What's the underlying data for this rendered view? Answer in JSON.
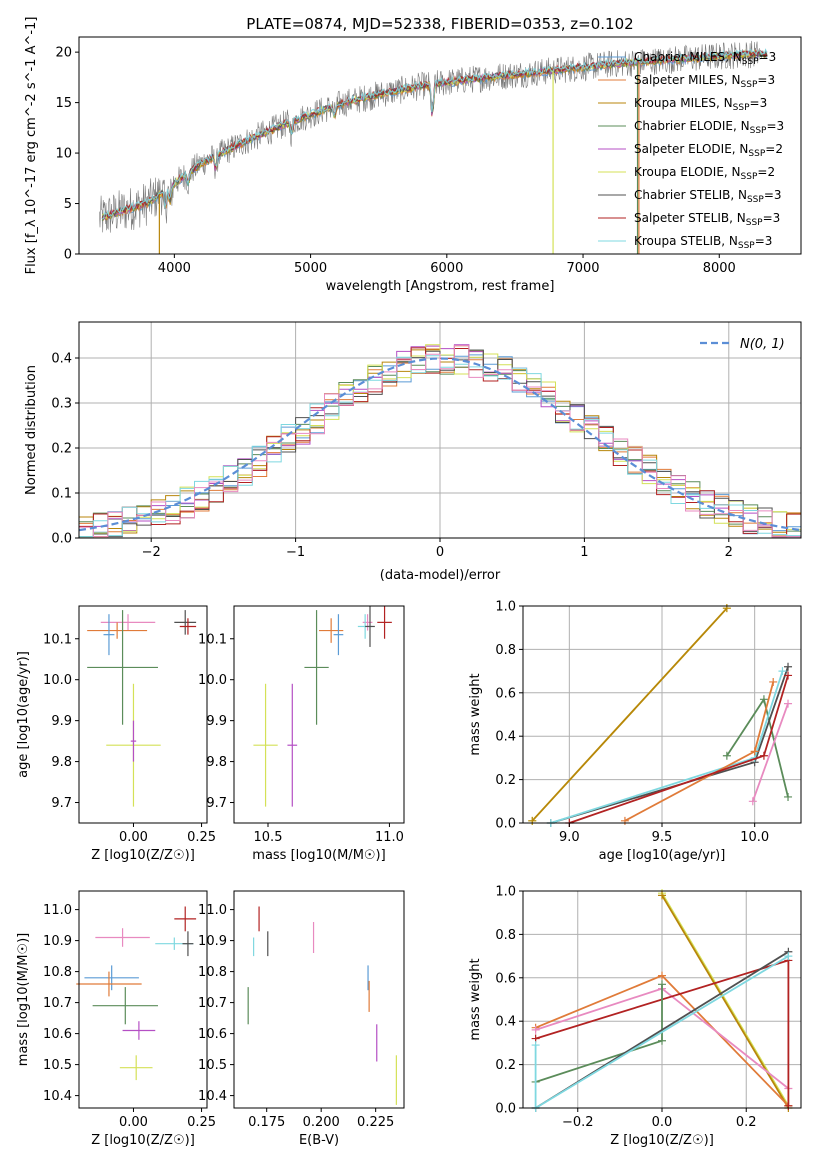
{
  "title": "PLATE=0874, MJD=52338, FIBERID=0353, z=0.102",
  "colors": {
    "chabrier_miles": "#5b9bd5",
    "salpeter_miles": "#e07b39",
    "kroupa_miles": "#b8860b",
    "chabrier_elodie": "#5b8c5a",
    "salpeter_elodie": "#b44fc4",
    "kroupa_elodie": "#d4e157",
    "chabrier_stelib": "#505050",
    "salpeter_stelib": "#b22222",
    "kroupa_stelib": "#7fd8e0",
    "pink": "#e88ac0",
    "normal_curve": "#5b8ed6",
    "grid": "#b0b0b0"
  },
  "chart_data": [
    {
      "id": "spectrum",
      "type": "line",
      "title": "PLATE=0874, MJD=52338, FIBERID=0353, z=0.102",
      "xlabel": "wavelength [Angstrom, rest frame]",
      "ylabel": "Flux [f_λ 10^-17 erg cm^-2 s^-1 A^-1]",
      "xlim": [
        3300,
        8600
      ],
      "ylim": [
        0,
        21.5
      ],
      "xticks": [
        "4000",
        "5000",
        "6000",
        "7000",
        "8000"
      ],
      "yticks": [
        "0",
        "5",
        "10",
        "15",
        "20"
      ],
      "grid": false,
      "legend_position": "top-right",
      "series": [
        {
          "name": "Chabrier MILES, N_SSP=3",
          "key": "chabrier_miles"
        },
        {
          "name": "Salpeter MILES, N_SSP=3",
          "key": "salpeter_miles"
        },
        {
          "name": "Kroupa MILES, N_SSP=3",
          "key": "kroupa_miles"
        },
        {
          "name": "Chabrier ELODIE, N_SSP=3",
          "key": "chabrier_elodie"
        },
        {
          "name": "Salpeter ELODIE, N_SSP=2",
          "key": "salpeter_elodie"
        },
        {
          "name": "Kroupa ELODIE, N_SSP=2",
          "key": "kroupa_elodie"
        },
        {
          "name": "Chabrier STELIB, N_SSP=3",
          "key": "chabrier_stelib"
        },
        {
          "name": "Salpeter STELIB, N_SSP=3",
          "key": "salpeter_stelib"
        },
        {
          "name": "Kroupa STELIB, N_SSP=3",
          "key": "kroupa_stelib"
        }
      ],
      "continuum": {
        "x": [
          3450,
          3600,
          3800,
          4000,
          4200,
          4500,
          4800,
          5000,
          5200,
          5500,
          5800,
          6000,
          6300,
          6600,
          6800,
          7000,
          7200,
          7400,
          7600,
          7800,
          8000,
          8200
        ],
        "y": [
          3.5,
          4.2,
          5.0,
          7.0,
          9.0,
          11.0,
          12.8,
          13.8,
          14.8,
          15.8,
          16.6,
          17.0,
          17.5,
          17.9,
          18.2,
          18.5,
          18.8,
          19.0,
          19.2,
          19.4,
          19.6,
          19.8
        ]
      }
    },
    {
      "id": "residuals",
      "type": "step",
      "xlabel": "(data-model)/error",
      "ylabel": "Normed distribution",
      "xlim": [
        -2.5,
        2.5
      ],
      "ylim": [
        0,
        0.48
      ],
      "xticks": [
        "−2",
        "−1",
        "0",
        "1",
        "2"
      ],
      "yticks": [
        "0.0",
        "0.1",
        "0.2",
        "0.3",
        "0.4"
      ],
      "grid": true,
      "legend_position": "top-right",
      "legend_label": "N(0, 1)"
    },
    {
      "id": "age_vs_Z",
      "type": "scatter",
      "xlabel": "Z [log10(Z/Z☉)]",
      "ylabel": "age  [log10(age/yr)]",
      "xlim": [
        -0.2,
        0.27
      ],
      "ylim": [
        9.65,
        10.18
      ],
      "xticks": [
        "0.00",
        "0.25"
      ],
      "yticks": [
        "9.7",
        "9.8",
        "9.9",
        "10.0",
        "10.1"
      ],
      "points": [
        {
          "key": "pink",
          "x": -0.02,
          "y": 10.14,
          "xerr": 0.1,
          "yerr": 0.02
        },
        {
          "key": "salpeter_miles",
          "x": -0.06,
          "y": 10.12,
          "xerr": 0.11,
          "yerr": 0.02
        },
        {
          "key": "chabrier_miles",
          "x": -0.09,
          "y": 10.11,
          "xerr": 0.02,
          "yerr": 0.05
        },
        {
          "key": "chabrier_stelib",
          "x": 0.19,
          "y": 10.14,
          "xerr": 0.04,
          "yerr": 0.03
        },
        {
          "key": "salpeter_stelib",
          "x": 0.2,
          "y": 10.13,
          "xerr": 0.03,
          "yerr": 0.02
        },
        {
          "key": "chabrier_elodie",
          "x": -0.04,
          "y": 10.03,
          "xerr": 0.13,
          "yerr": 0.14
        },
        {
          "key": "kroupa_elodie",
          "x": 0.0,
          "y": 9.84,
          "xerr": 0.1,
          "yerr": 0.15
        },
        {
          "key": "salpeter_elodie",
          "x": 0.0,
          "y": 9.85,
          "xerr": 0.01,
          "yerr": 0.05
        }
      ]
    },
    {
      "id": "age_vs_mass",
      "type": "scatter",
      "xlabel": "mass [log10(M/M☉)]",
      "ylabel": "",
      "xlim": [
        10.36,
        11.06
      ],
      "ylim": [
        9.65,
        10.18
      ],
      "xticks": [
        "10.5",
        "11.0"
      ],
      "yticks": [
        "9.7",
        "9.8",
        "9.9",
        "10.0",
        "10.1"
      ],
      "points": [
        {
          "key": "salpeter_miles",
          "x": 10.76,
          "y": 10.12,
          "xerr": 0.05,
          "yerr": 0.03
        },
        {
          "key": "chabrier_miles",
          "x": 10.79,
          "y": 10.11,
          "xerr": 0.02,
          "yerr": 0.05
        },
        {
          "key": "pink",
          "x": 10.91,
          "y": 10.14,
          "xerr": 0.02,
          "yerr": 0.02
        },
        {
          "key": "kroupa_stelib",
          "x": 10.9,
          "y": 10.13,
          "xerr": 0.03,
          "yerr": 0.03
        },
        {
          "key": "chabrier_stelib",
          "x": 10.92,
          "y": 10.13,
          "xerr": 0.02,
          "yerr": 0.05
        },
        {
          "key": "salpeter_stelib",
          "x": 10.98,
          "y": 10.14,
          "xerr": 0.03,
          "yerr": 0.04
        },
        {
          "key": "chabrier_elodie",
          "x": 10.7,
          "y": 10.03,
          "xerr": 0.05,
          "yerr": 0.14
        },
        {
          "key": "kroupa_elodie",
          "x": 10.49,
          "y": 9.84,
          "xerr": 0.05,
          "yerr": 0.15
        },
        {
          "key": "salpeter_elodie",
          "x": 10.6,
          "y": 9.84,
          "xerr": 0.02,
          "yerr": 0.15
        }
      ]
    },
    {
      "id": "mass_weight_vs_age",
      "type": "line",
      "xlabel": "age  [log10(age/yr)]",
      "ylabel": "mass weight",
      "xlim": [
        8.75,
        10.25
      ],
      "ylim": [
        0,
        1.0
      ],
      "xticks": [
        "9.0",
        "9.5",
        "10.0"
      ],
      "yticks": [
        "0.0",
        "0.2",
        "0.4",
        "0.6",
        "0.8",
        "1.0"
      ],
      "grid": true,
      "series": [
        {
          "key": "kroupa_elodie",
          "x": [
            8.8,
            9.85
          ],
          "y": [
            0.01,
            0.99
          ]
        },
        {
          "key": "kroupa_miles",
          "x": [
            8.8,
            9.85
          ],
          "y": [
            0.01,
            0.99
          ]
        },
        {
          "key": "chabrier_elodie",
          "x": [
            9.85,
            10.05,
            10.18
          ],
          "y": [
            0.31,
            0.57,
            0.12
          ]
        },
        {
          "key": "chabrier_stelib",
          "x": [
            8.9,
            10.0,
            10.18
          ],
          "y": [
            0.0,
            0.28,
            0.72
          ]
        },
        {
          "key": "kroupa_stelib",
          "x": [
            8.9,
            10.0,
            10.15
          ],
          "y": [
            0.0,
            0.3,
            0.7
          ]
        },
        {
          "key": "salpeter_miles",
          "x": [
            9.3,
            10.0,
            10.1
          ],
          "y": [
            0.01,
            0.33,
            0.65
          ]
        },
        {
          "key": "salpeter_stelib",
          "x": [
            9.0,
            10.05,
            10.18
          ],
          "y": [
            0.0,
            0.31,
            0.68
          ]
        },
        {
          "key": "pink",
          "x": [
            9.99,
            10.18
          ],
          "y": [
            0.1,
            0.55
          ]
        }
      ]
    },
    {
      "id": "mass_vs_Z",
      "type": "scatter",
      "xlabel": "Z [log10(Z/Z☉)]",
      "ylabel": "mass [log10(M/M☉)]",
      "xlim": [
        -0.2,
        0.27
      ],
      "ylim": [
        10.36,
        11.06
      ],
      "xticks": [
        "0.00",
        "0.25"
      ],
      "yticks": [
        "10.4",
        "10.5",
        "10.6",
        "10.7",
        "10.8",
        "10.9",
        "11.0"
      ],
      "points": [
        {
          "key": "salpeter_stelib",
          "x": 0.19,
          "y": 10.97,
          "xerr": 0.04,
          "yerr": 0.04
        },
        {
          "key": "pink",
          "x": -0.04,
          "y": 10.91,
          "xerr": 0.1,
          "yerr": 0.03
        },
        {
          "key": "kroupa_stelib",
          "x": 0.15,
          "y": 10.89,
          "xerr": 0.07,
          "yerr": 0.02
        },
        {
          "key": "chabrier_stelib",
          "x": 0.2,
          "y": 10.89,
          "xerr": 0.02,
          "yerr": 0.04
        },
        {
          "key": "chabrier_miles",
          "x": -0.08,
          "y": 10.78,
          "xerr": 0.1,
          "yerr": 0.04
        },
        {
          "key": "salpeter_miles",
          "x": -0.09,
          "y": 10.76,
          "xerr": 0.12,
          "yerr": 0.04
        },
        {
          "key": "chabrier_elodie",
          "x": -0.03,
          "y": 10.69,
          "xerr": 0.12,
          "yerr": 0.06
        },
        {
          "key": "salpeter_elodie",
          "x": 0.02,
          "y": 10.61,
          "xerr": 0.06,
          "yerr": 0.03
        },
        {
          "key": "kroupa_elodie",
          "x": 0.01,
          "y": 10.49,
          "xerr": 0.06,
          "yerr": 0.04
        }
      ]
    },
    {
      "id": "mass_vs_ebv",
      "type": "scatter",
      "xlabel": "E(B-V)",
      "ylabel": "",
      "xlim": [
        0.16,
        0.238
      ],
      "ylim": [
        10.36,
        11.06
      ],
      "xticks": [
        "0.175",
        "0.200",
        "0.225"
      ],
      "yticks": [
        "10.4",
        "10.5",
        "10.6",
        "10.7",
        "10.8",
        "10.9",
        "11.0"
      ],
      "points": [
        {
          "key": "salpeter_stelib",
          "x": 0.1715,
          "y": 10.97,
          "xerr": 0.0,
          "yerr": 0.04
        },
        {
          "key": "kroupa_stelib",
          "x": 0.169,
          "y": 10.88,
          "xerr": 0.0,
          "yerr": 0.03
        },
        {
          "key": "chabrier_stelib",
          "x": 0.1755,
          "y": 10.89,
          "xerr": 0.0,
          "yerr": 0.04
        },
        {
          "key": "pink",
          "x": 0.1965,
          "y": 10.91,
          "xerr": 0.0,
          "yerr": 0.05
        },
        {
          "key": "chabrier_miles",
          "x": 0.2215,
          "y": 10.78,
          "xerr": 0.0,
          "yerr": 0.04
        },
        {
          "key": "salpeter_miles",
          "x": 0.222,
          "y": 10.72,
          "xerr": 0.0,
          "yerr": 0.05
        },
        {
          "key": "chabrier_elodie",
          "x": 0.1665,
          "y": 10.69,
          "xerr": 0.0,
          "yerr": 0.06
        },
        {
          "key": "salpeter_elodie",
          "x": 0.2255,
          "y": 10.57,
          "xerr": 0.0,
          "yerr": 0.06
        },
        {
          "key": "kroupa_elodie",
          "x": 0.2345,
          "y": 10.45,
          "xerr": 0.0,
          "yerr": 0.08
        }
      ]
    },
    {
      "id": "mass_weight_vs_Z",
      "type": "line",
      "xlabel": "Z [log10(Z/Z☉)]",
      "ylabel": "mass weight",
      "xlim": [
        -0.33,
        0.33
      ],
      "ylim": [
        0,
        1.0
      ],
      "xticks": [
        "−0.2",
        "0.0",
        "0.2"
      ],
      "yticks": [
        "0.0",
        "0.2",
        "0.4",
        "0.6",
        "0.8",
        "1.0"
      ],
      "grid": true,
      "series": [
        {
          "key": "kroupa_elodie",
          "x": [
            0.0,
            0.3
          ],
          "y": [
            0.99,
            0.01
          ]
        },
        {
          "key": "kroupa_miles",
          "x": [
            0.0,
            0.3
          ],
          "y": [
            0.98,
            0.0
          ]
        },
        {
          "key": "salpeter_miles",
          "x": [
            -0.3,
            0.0,
            0.3
          ],
          "y": [
            0.37,
            0.61,
            0.01
          ]
        },
        {
          "key": "pink",
          "x": [
            -0.3,
            0.0,
            0.3
          ],
          "y": [
            0.36,
            0.55,
            0.09
          ]
        },
        {
          "key": "salpeter_stelib",
          "x": [
            -0.3,
            0.3,
            0.3
          ],
          "y": [
            0.32,
            0.68,
            0.01
          ]
        },
        {
          "key": "chabrier_elodie",
          "x": [
            -0.3,
            0.0,
            0.0
          ],
          "y": [
            0.12,
            0.31,
            0.57
          ]
        },
        {
          "key": "chabrier_stelib",
          "x": [
            -0.3,
            0.3
          ],
          "y": [
            0.0,
            0.72
          ]
        },
        {
          "key": "kroupa_stelib",
          "x": [
            -0.3,
            -0.3,
            0.3
          ],
          "y": [
            0.29,
            0.0,
            0.7
          ]
        }
      ]
    }
  ]
}
